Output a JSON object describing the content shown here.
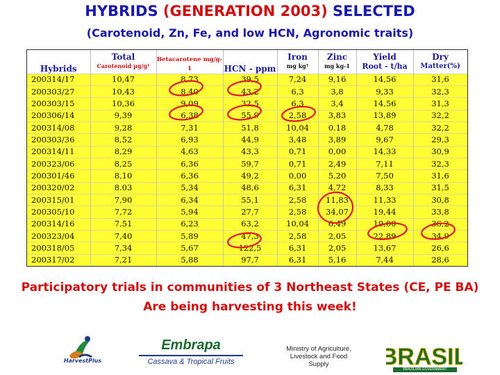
{
  "title": {
    "part1": "HYBRIDS ",
    "part2": "(GENERATION 2003)",
    "part3": " SELECTED"
  },
  "subtitle": "(Carotenoid, Zn, Fe, and low HCN, Agronomic traits)",
  "table": {
    "headers": {
      "hybrids": "Hybrids",
      "total_line1": "Total",
      "total_line2": "Carotenoid µg/g¹",
      "betacarotene": "Betacarotene mg/g-1",
      "hcn": "HCN - ppm",
      "iron_line1": "Iron",
      "iron_line2": "mg kg¹",
      "zinc_line1": "Zinc",
      "zinc_line2": "mg kg-1",
      "yield_line1": "Yield",
      "yield_line2": "Root - t/ha",
      "dry_line1": "Dry",
      "dry_line2": "Matter(%)"
    },
    "rows": [
      [
        "200314/17",
        "10,47",
        "8,73",
        "39,5",
        "7,24",
        "9,16",
        "14,56",
        "31,6"
      ],
      [
        "200303/27",
        "10,43",
        "8,40",
        "43,2",
        "6,3",
        "3,8",
        "9,33",
        "32,3"
      ],
      [
        "200303/15",
        "10,36",
        "9,09",
        "32,5",
        "6,3",
        "3,4",
        "14,56",
        "31,3"
      ],
      [
        "200306/14",
        "9,39",
        "6,38",
        "55,9",
        "2,58",
        "3,83",
        "13,89",
        "32,2"
      ],
      [
        "200314/08",
        "9,28",
        "7,31",
        "51,8",
        "10,04",
        "0.18",
        "4,78",
        "32,2"
      ],
      [
        "200303/36",
        "8,52",
        "6,93",
        "44,9",
        "3,48",
        "3,89",
        "9,67",
        "29,3"
      ],
      [
        "200314/11",
        "8,29",
        "4,63",
        "43,3",
        "0,71",
        "0,00",
        "14,33",
        "30,9"
      ],
      [
        "200323/06",
        "8,25",
        "6,36",
        "59,7",
        "0,71",
        "2,49",
        "7,11",
        "32,3"
      ],
      [
        "200301/46",
        "8,10",
        "6,36",
        "49,2",
        "0,00",
        "5,20",
        "7,50",
        "31,6"
      ],
      [
        "200320/02",
        "8.03",
        "5,34",
        "48,6",
        "6,31",
        "4,72",
        "8,33",
        "31,5"
      ],
      [
        "200315/01",
        "7,90",
        "6,34",
        "55,1",
        "2,58",
        "11,83",
        "11,33",
        "30,8"
      ],
      [
        "200305/10",
        "7,72",
        "5,94",
        "27,7",
        "2,58",
        "34,07",
        "19,44",
        "33,8"
      ],
      [
        "200314/16",
        "7,51",
        "6,23",
        "63,2",
        "10,04",
        "6,49",
        "19,00",
        "36,2"
      ],
      [
        "200323/04",
        "7,40",
        "5,89",
        "47,3",
        "2,58",
        "2,05",
        "22,89",
        "34,9"
      ],
      [
        "200318/05",
        "7,34",
        "5,67",
        "122,5",
        "6,31",
        "2,05",
        "13,67",
        "26,6"
      ],
      [
        "200317/02",
        "7,21",
        "5,88",
        "97,7",
        "6,31",
        "5,16",
        "7,44",
        "28,6"
      ]
    ]
  },
  "note1": "Participatory trials in communities of 3 Northeast States (CE, PE BA)",
  "note2": "Are being harvesting this week!",
  "logos": {
    "harvestplus": "HarvestPlus",
    "embrapa": "Embrapa",
    "embrapa_sub": "Cassava & Tropical Fruits",
    "ministry": "Ministry of Agriculture, Livestock and Food Supply",
    "brasil": "BRASIL",
    "brasil_sub": "BRAZILIAN GOVERNMENT"
  },
  "colors": {
    "title_blue": "#1a1aa8",
    "accent_red": "#d01010",
    "table_yellow": "#ffff33"
  }
}
